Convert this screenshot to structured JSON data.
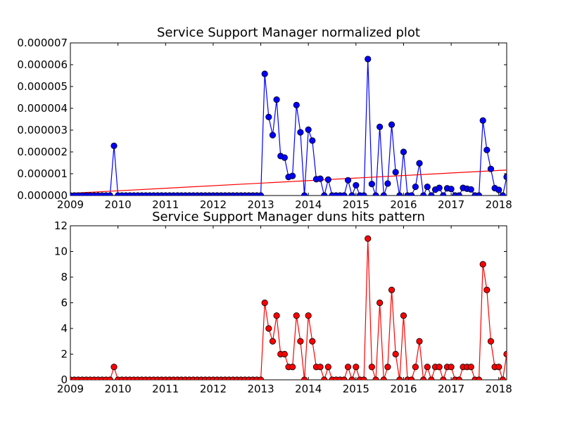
{
  "chart_data": [
    {
      "type": "line",
      "title": "Service Support Manager normalized plot",
      "xlabel": "",
      "ylabel": "",
      "xlim": [
        "2009-01",
        "2018-03"
      ],
      "ylim": [
        0,
        7e-06
      ],
      "x_ticks": [
        "2009",
        "2010",
        "2011",
        "2012",
        "2013",
        "2014",
        "2015",
        "2016",
        "2017",
        "2018"
      ],
      "y_ticks": [
        "0.000000",
        "0.000001",
        "0.000002",
        "0.000003",
        "0.000004",
        "0.000005",
        "0.000006",
        "0.000007"
      ],
      "grid": false,
      "x": [
        "2009-01",
        "2009-02",
        "2009-03",
        "2009-04",
        "2009-05",
        "2009-06",
        "2009-07",
        "2009-08",
        "2009-09",
        "2009-10",
        "2009-11",
        "2009-12",
        "2010-01",
        "2010-02",
        "2010-03",
        "2010-04",
        "2010-05",
        "2010-06",
        "2010-07",
        "2010-08",
        "2010-09",
        "2010-10",
        "2010-11",
        "2010-12",
        "2011-01",
        "2011-02",
        "2011-03",
        "2011-04",
        "2011-05",
        "2011-06",
        "2011-07",
        "2011-08",
        "2011-09",
        "2011-10",
        "2011-11",
        "2011-12",
        "2012-01",
        "2012-02",
        "2012-03",
        "2012-04",
        "2012-05",
        "2012-06",
        "2012-07",
        "2012-08",
        "2012-09",
        "2012-10",
        "2012-11",
        "2012-12",
        "2013-01",
        "2013-02",
        "2013-03",
        "2013-04",
        "2013-05",
        "2013-06",
        "2013-07",
        "2013-08",
        "2013-09",
        "2013-10",
        "2013-11",
        "2013-12",
        "2014-01",
        "2014-02",
        "2014-03",
        "2014-04",
        "2014-05",
        "2014-06",
        "2014-07",
        "2014-08",
        "2014-09",
        "2014-10",
        "2014-11",
        "2014-12",
        "2015-01",
        "2015-02",
        "2015-03",
        "2015-04",
        "2015-05",
        "2015-06",
        "2015-07",
        "2015-08",
        "2015-09",
        "2015-10",
        "2015-11",
        "2015-12",
        "2016-01",
        "2016-02",
        "2016-03",
        "2016-04",
        "2016-05",
        "2016-06",
        "2016-07",
        "2016-08",
        "2016-09",
        "2016-10",
        "2016-11",
        "2016-12",
        "2017-01",
        "2017-02",
        "2017-03",
        "2017-04",
        "2017-05",
        "2017-06",
        "2017-07",
        "2017-08",
        "2017-09",
        "2017-10",
        "2017-11",
        "2017-12",
        "2018-01",
        "2018-02",
        "2018-03"
      ],
      "series": [
        {
          "name": "",
          "color": "#0000ff",
          "values": [
            0,
            0,
            0,
            0,
            0,
            0,
            0,
            0,
            0,
            0,
            0,
            2.28e-06,
            0,
            0,
            0,
            0,
            0,
            0,
            0,
            0,
            0,
            0,
            0,
            0,
            0,
            0,
            0,
            0,
            0,
            0,
            0,
            0,
            0,
            0,
            0,
            0,
            0,
            0,
            0,
            0,
            0,
            0,
            0,
            0,
            0,
            0,
            0,
            0,
            0,
            5.58e-06,
            3.6e-06,
            2.77e-06,
            4.4e-06,
            1.81e-06,
            1.74e-06,
            8.5e-07,
            9e-07,
            4.15e-06,
            2.9e-06,
            0,
            3.02e-06,
            2.52e-06,
            7.5e-07,
            7.7e-07,
            0,
            7.3e-07,
            0,
            0,
            0,
            0,
            7e-07,
            0,
            4.7e-07,
            0,
            0,
            6.26e-06,
            5.3e-07,
            0,
            3.15e-06,
            0,
            5.5e-07,
            3.25e-06,
            1.07e-06,
            0,
            2e-06,
            0,
            0,
            4e-07,
            1.48e-06,
            0,
            4e-07,
            0,
            2.7e-07,
            3.5e-07,
            0,
            3.3e-07,
            3e-07,
            0,
            0,
            3.5e-07,
            3.1e-07,
            2.8e-07,
            0,
            0,
            3.44e-06,
            2.09e-06,
            1.22e-06,
            3.4e-07,
            2.6e-07,
            0,
            8.5e-07
          ]
        }
      ],
      "trend_line": {
        "color": "#ff0000",
        "start": 1e-07,
        "end": 1.17e-06
      }
    },
    {
      "type": "line",
      "title": "Service Support Manager duns hits pattern",
      "xlabel": "",
      "ylabel": "",
      "xlim": [
        "2009-01",
        "2018-03"
      ],
      "ylim": [
        0,
        12
      ],
      "x_ticks": [
        "2009",
        "2010",
        "2011",
        "2012",
        "2013",
        "2014",
        "2015",
        "2016",
        "2017",
        "2018"
      ],
      "y_ticks": [
        "0",
        "2",
        "4",
        "6",
        "8",
        "10",
        "12"
      ],
      "grid": false,
      "x": [
        "2009-01",
        "2009-02",
        "2009-03",
        "2009-04",
        "2009-05",
        "2009-06",
        "2009-07",
        "2009-08",
        "2009-09",
        "2009-10",
        "2009-11",
        "2009-12",
        "2010-01",
        "2010-02",
        "2010-03",
        "2010-04",
        "2010-05",
        "2010-06",
        "2010-07",
        "2010-08",
        "2010-09",
        "2010-10",
        "2010-11",
        "2010-12",
        "2011-01",
        "2011-02",
        "2011-03",
        "2011-04",
        "2011-05",
        "2011-06",
        "2011-07",
        "2011-08",
        "2011-09",
        "2011-10",
        "2011-11",
        "2011-12",
        "2012-01",
        "2012-02",
        "2012-03",
        "2012-04",
        "2012-05",
        "2012-06",
        "2012-07",
        "2012-08",
        "2012-09",
        "2012-10",
        "2012-11",
        "2012-12",
        "2013-01",
        "2013-02",
        "2013-03",
        "2013-04",
        "2013-05",
        "2013-06",
        "2013-07",
        "2013-08",
        "2013-09",
        "2013-10",
        "2013-11",
        "2013-12",
        "2014-01",
        "2014-02",
        "2014-03",
        "2014-04",
        "2014-05",
        "2014-06",
        "2014-07",
        "2014-08",
        "2014-09",
        "2014-10",
        "2014-11",
        "2014-12",
        "2015-01",
        "2015-02",
        "2015-03",
        "2015-04",
        "2015-05",
        "2015-06",
        "2015-07",
        "2015-08",
        "2015-09",
        "2015-10",
        "2015-11",
        "2015-12",
        "2016-01",
        "2016-02",
        "2016-03",
        "2016-04",
        "2016-05",
        "2016-06",
        "2016-07",
        "2016-08",
        "2016-09",
        "2016-10",
        "2016-11",
        "2016-12",
        "2017-01",
        "2017-02",
        "2017-03",
        "2017-04",
        "2017-05",
        "2017-06",
        "2017-07",
        "2017-08",
        "2017-09",
        "2017-10",
        "2017-11",
        "2017-12",
        "2018-01",
        "2018-02",
        "2018-03"
      ],
      "series": [
        {
          "name": "",
          "color": "#ff0000",
          "values": [
            0,
            0,
            0,
            0,
            0,
            0,
            0,
            0,
            0,
            0,
            0,
            1,
            0,
            0,
            0,
            0,
            0,
            0,
            0,
            0,
            0,
            0,
            0,
            0,
            0,
            0,
            0,
            0,
            0,
            0,
            0,
            0,
            0,
            0,
            0,
            0,
            0,
            0,
            0,
            0,
            0,
            0,
            0,
            0,
            0,
            0,
            0,
            0,
            0,
            6,
            4,
            3,
            5,
            2,
            2,
            1,
            1,
            5,
            3,
            0,
            5,
            3,
            1,
            1,
            0,
            1,
            0,
            0,
            0,
            0,
            1,
            0,
            1,
            0,
            0,
            11,
            1,
            0,
            6,
            0,
            1,
            7,
            2,
            0,
            5,
            0,
            0,
            1,
            3,
            0,
            1,
            0,
            1,
            1,
            0,
            1,
            1,
            0,
            0,
            1,
            1,
            1,
            0,
            0,
            9,
            7,
            3,
            1,
            1,
            0,
            2
          ]
        }
      ]
    }
  ]
}
